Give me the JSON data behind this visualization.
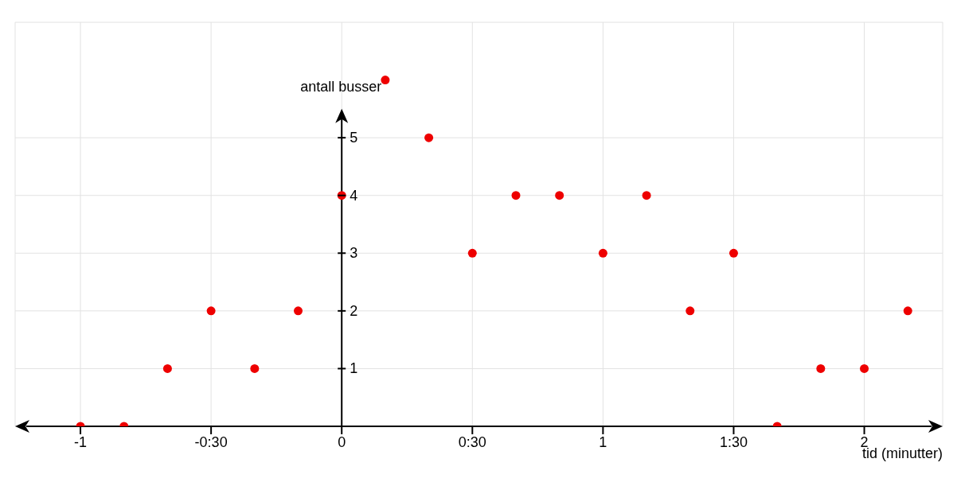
{
  "chart_data": {
    "type": "scatter",
    "xlabel": "tid (minutter)",
    "ylabel": "antall busser",
    "x": [
      -1,
      -0.8333,
      -0.6667,
      -0.5,
      -0.3333,
      -0.1667,
      0,
      0.1667,
      0.3333,
      0.5,
      0.6667,
      0.8333,
      1,
      1.1667,
      1.3333,
      1.5,
      1.6667,
      1.8333,
      2,
      2.1667
    ],
    "series": [
      {
        "color": "#ee0000",
        "values": [
          0,
          0,
          1,
          2,
          1,
          2,
          4,
          6,
          5,
          3,
          4,
          4,
          3,
          4,
          2,
          3,
          0,
          1,
          1,
          2
        ]
      }
    ],
    "xlim": [
      -1.25,
      2.3
    ],
    "ylim": [
      0,
      7
    ],
    "xticks": [
      -1,
      {
        "value": -0.5,
        "label": "-0:30"
      },
      0,
      {
        "value": 0.5,
        "label": "0:30"
      },
      1,
      {
        "value": 1.5,
        "label": "1:30"
      },
      2
    ],
    "yticks": [
      1,
      2,
      3,
      4,
      5
    ],
    "grid": true,
    "marker": "circle"
  }
}
